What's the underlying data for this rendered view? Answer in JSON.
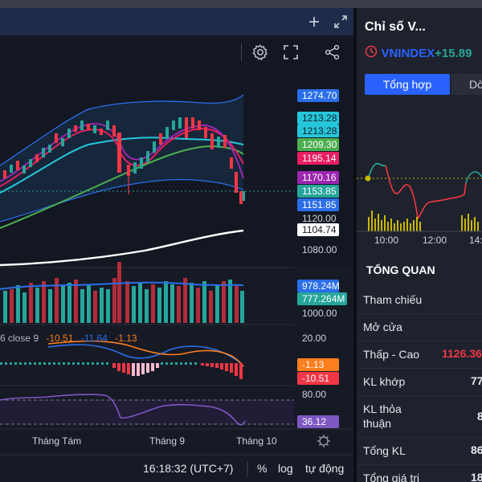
{
  "chart_header": {
    "add_label": "+"
  },
  "price_axis": {
    "badges": [
      {
        "text": "1274.70",
        "bg": "#2a6ee8",
        "fg": "#ffffff"
      },
      {
        "text": "1213.28",
        "bg": "#26c6da",
        "fg": "#0d1b2a"
      },
      {
        "text": "1213.28",
        "bg": "#26c6da",
        "fg": "#0d1b2a"
      },
      {
        "text": "1209.30",
        "bg": "#4caf50",
        "fg": "#ffffff"
      },
      {
        "text": "1195.14",
        "bg": "#e91e63",
        "fg": "#ffffff"
      },
      {
        "text": "1170.16",
        "bg": "#9c27b0",
        "fg": "#ffffff"
      },
      {
        "text": "1153.85",
        "bg": "#26a69a",
        "fg": "#ffffff"
      },
      {
        "text": "1151.85",
        "bg": "#2a6ee8",
        "fg": "#ffffff"
      },
      {
        "text": "1104.74",
        "bg": "#ffffff",
        "fg": "#131722"
      }
    ],
    "ticks": [
      "1120.00",
      "1080.00"
    ]
  },
  "volume_axis": {
    "badges": [
      {
        "text": "978.24M",
        "bg": "#2a6ee8",
        "fg": "#ffffff"
      },
      {
        "text": "777.264M",
        "bg": "#26a69a",
        "fg": "#ffffff"
      }
    ],
    "ticks": [
      "1000.00"
    ]
  },
  "macd": {
    "legend": {
      "prefix": "6 close 9",
      "v1": "-10.51",
      "v2": "-11.64",
      "v3": "-1.13"
    },
    "axis_tick": "20.00",
    "badges": [
      {
        "text": "-1.13",
        "bg": "#ff7f1e",
        "fg": "#ffffff"
      },
      {
        "text": "-10.51",
        "bg": "#f23645",
        "fg": "#ffffff"
      }
    ]
  },
  "rsi": {
    "axis_tick": "80.00",
    "badge": {
      "text": "36.12",
      "bg": "#7e57c2",
      "fg": "#ffffff"
    }
  },
  "time_axis": {
    "labels": [
      "Tháng Tám",
      "Tháng 9",
      "Tháng 10"
    ]
  },
  "status_bar": {
    "time": "16:18:32 (UTC+7)",
    "percent": "%",
    "log": "log",
    "auto": "tự động"
  },
  "right_panel": {
    "title": "Chỉ số V...",
    "index_name": "VNINDEX",
    "index_change": "+15.89",
    "tabs": [
      "Tổng hợp",
      "Dò"
    ],
    "intraday_times": [
      "10:00",
      "12:00",
      "14:"
    ],
    "overview_title": "TỔNG QUAN",
    "overview": [
      {
        "label": "Tham chiếu",
        "value": ""
      },
      {
        "label": "Mở cửa",
        "value": ""
      },
      {
        "label": "Thấp - Cao",
        "value": "1126.36"
      },
      {
        "label": "KL khớp",
        "value": "77"
      },
      {
        "label": "KL thỏa thuận",
        "value": "8"
      },
      {
        "label": "Tổng KL",
        "value": "86"
      },
      {
        "label": "Tổng giá trị",
        "value": "18"
      }
    ],
    "colors": {
      "up": "#26a69a",
      "down": "#f23645",
      "accent": "#2962ff"
    }
  }
}
